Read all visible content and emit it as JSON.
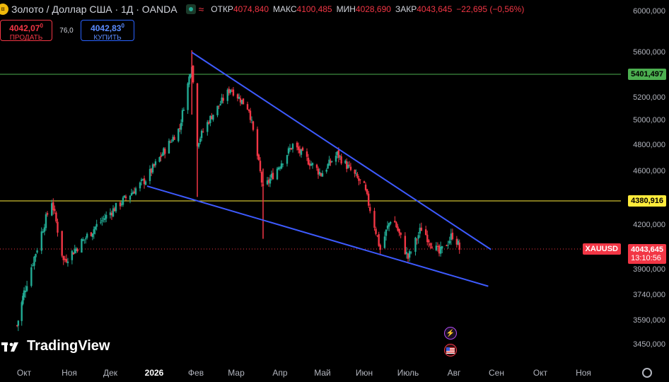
{
  "header": {
    "symbol": "Золото / Доллар США · 1Д · OANDA",
    "coin_icon": "gold-coin-icon",
    "ohlc": [
      {
        "label": "ОТКР",
        "value": "4074,840"
      },
      {
        "label": "МАКС",
        "value": "4100,485"
      },
      {
        "label": "МИН",
        "value": "4028,690"
      },
      {
        "label": "ЗАКР",
        "value": "4043,645"
      }
    ],
    "change": "−22,695 (−0,56%)"
  },
  "trade": {
    "sell_price": "4042,07",
    "sell_price_sup": "0",
    "sell_label": "ПРОДАТЬ",
    "spread": "76,0",
    "buy_price": "4042,83",
    "buy_price_sup": "0",
    "buy_label": "КУПИТЬ"
  },
  "price_axis": {
    "ticks": [
      "6000,000",
      "5600,000",
      "5200,000",
      "5000,000",
      "4800,000",
      "4600,000",
      "4200,000",
      "3900,000",
      "3740,000",
      "3590,000",
      "3450,000"
    ],
    "levels": [
      {
        "label": "5401,497",
        "value": 5401.497,
        "color": "#4caf50"
      },
      {
        "label": "4380,916",
        "value": 4380.916,
        "color": "#ffeb3b"
      }
    ],
    "last_price": {
      "symbol": "XAUUSD",
      "value": "4043,645",
      "countdown": "13:10:56"
    }
  },
  "time_axis": {
    "ticks": [
      {
        "label": "Окт",
        "bold": false
      },
      {
        "label": "Ноя",
        "bold": false
      },
      {
        "label": "Дек",
        "bold": false
      },
      {
        "label": "2026",
        "bold": true
      },
      {
        "label": "Фев",
        "bold": false
      },
      {
        "label": "Мар",
        "bold": false
      },
      {
        "label": "Апр",
        "bold": false
      },
      {
        "label": "Май",
        "bold": false
      },
      {
        "label": "Июн",
        "bold": false
      },
      {
        "label": "Июль",
        "bold": false
      },
      {
        "label": "Авг",
        "bold": false
      },
      {
        "label": "Сен",
        "bold": false
      },
      {
        "label": "Окт",
        "bold": false
      },
      {
        "label": "Ноя",
        "bold": false
      }
    ]
  },
  "branding": {
    "logo_text": "TradingView"
  },
  "colors": {
    "up": "#22ab94",
    "down": "#f23645",
    "trendline": "#3d5afe",
    "bg": "#000000"
  },
  "chart_data": {
    "type": "candlestick",
    "title": "",
    "xlabel": "",
    "ylabel": "",
    "ylim": [
      3400,
      6050
    ],
    "trendlines": [
      {
        "from": [
          "2026-01-29",
          5600
        ],
        "to": [
          "2026-08-28",
          4040
        ]
      },
      {
        "from": [
          "2025-12-27",
          4490
        ],
        "to": [
          "2026-08-26",
          3795
        ]
      }
    ],
    "key_points": [
      {
        "date": "2025-09-25",
        "close": 3560
      },
      {
        "date": "2025-10-20",
        "close": 4380
      },
      {
        "date": "2025-10-28",
        "close": 3960
      },
      {
        "date": "2025-12-26",
        "close": 4540
      },
      {
        "date": "2026-01-20",
        "close": 4940
      },
      {
        "date": "2026-01-29",
        "close": 5500
      },
      {
        "date": "2026-02-02",
        "close": 4820
      },
      {
        "date": "2026-02-10",
        "close": 5000
      },
      {
        "date": "2026-02-25",
        "close": 5280
      },
      {
        "date": "2026-03-10",
        "close": 5100
      },
      {
        "date": "2026-03-20",
        "close": 4460
      },
      {
        "date": "2026-04-10",
        "close": 4800
      },
      {
        "date": "2026-04-30",
        "close": 4580
      },
      {
        "date": "2026-05-12",
        "close": 4730
      },
      {
        "date": "2026-06-01",
        "close": 4480
      },
      {
        "date": "2026-06-12",
        "close": 4040
      },
      {
        "date": "2026-06-20",
        "close": 4270
      },
      {
        "date": "2026-07-01",
        "close": 3980
      },
      {
        "date": "2026-07-10",
        "close": 4180
      },
      {
        "date": "2026-07-22",
        "close": 4010
      },
      {
        "date": "2026-08-01",
        "close": 4150
      },
      {
        "date": "2026-08-05",
        "close": 4044
      }
    ],
    "last": {
      "open": 4074.84,
      "high": 4100.485,
      "low": 4028.69,
      "close": 4043.645
    }
  }
}
